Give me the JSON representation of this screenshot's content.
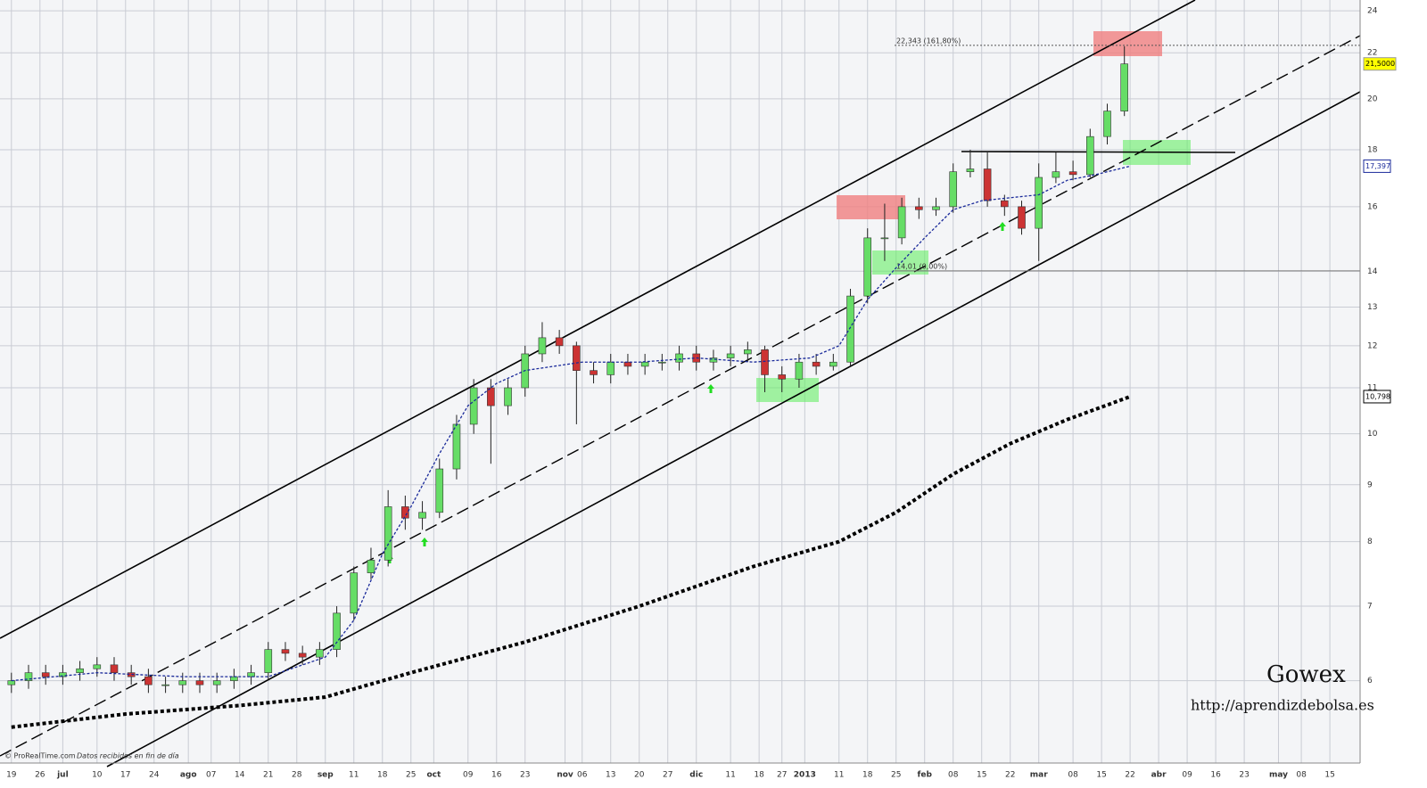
{
  "chart_data": {
    "type": "candlestick",
    "log_scale": true,
    "grid": true,
    "ylim": [
      5.06,
      24.54
    ],
    "yticks": [
      6,
      7,
      8,
      9,
      10,
      11,
      12,
      13,
      14,
      16,
      18,
      20,
      22,
      24
    ],
    "xlim": [
      -2,
      236.3
    ],
    "xticks": [
      {
        "value": 0,
        "label": "19"
      },
      {
        "value": 5,
        "label": "26"
      },
      {
        "value": 9,
        "label": "jul"
      },
      {
        "value": 15,
        "label": "10"
      },
      {
        "value": 20,
        "label": "17"
      },
      {
        "value": 25,
        "label": "24"
      },
      {
        "value": 31,
        "label": "ago"
      },
      {
        "value": 35,
        "label": "07"
      },
      {
        "value": 40,
        "label": "14"
      },
      {
        "value": 45,
        "label": "21"
      },
      {
        "value": 50,
        "label": "28"
      },
      {
        "value": 55,
        "label": "sep"
      },
      {
        "value": 60,
        "label": "11"
      },
      {
        "value": 65,
        "label": "18"
      },
      {
        "value": 70,
        "label": "25"
      },
      {
        "value": 74,
        "label": "oct"
      },
      {
        "value": 80,
        "label": "09"
      },
      {
        "value": 85,
        "label": "16"
      },
      {
        "value": 90,
        "label": "23"
      },
      {
        "value": 97,
        "label": "nov"
      },
      {
        "value": 100,
        "label": "06"
      },
      {
        "value": 105,
        "label": "13"
      },
      {
        "value": 110,
        "label": "20"
      },
      {
        "value": 115,
        "label": "27"
      },
      {
        "value": 120,
        "label": "dic"
      },
      {
        "value": 126,
        "label": "11"
      },
      {
        "value": 131,
        "label": "18"
      },
      {
        "value": 135,
        "label": "27"
      },
      {
        "value": 139,
        "label": "2013"
      },
      {
        "value": 145,
        "label": "11"
      },
      {
        "value": 150,
        "label": "18"
      },
      {
        "value": 155,
        "label": "25"
      },
      {
        "value": 160,
        "label": "feb"
      },
      {
        "value": 165,
        "label": "08"
      },
      {
        "value": 170,
        "label": "15"
      },
      {
        "value": 175,
        "label": "22"
      },
      {
        "value": 180,
        "label": "mar"
      },
      {
        "value": 186,
        "label": "08"
      },
      {
        "value": 191,
        "label": "15"
      },
      {
        "value": 196,
        "label": "22"
      },
      {
        "value": 201,
        "label": "abr"
      },
      {
        "value": 206,
        "label": "09"
      },
      {
        "value": 211,
        "label": "16"
      },
      {
        "value": 216,
        "label": "23"
      },
      {
        "value": 222,
        "label": "may"
      },
      {
        "value": 226,
        "label": "08"
      },
      {
        "value": 231,
        "label": "15"
      }
    ],
    "up_color": "#66dd66",
    "down_color": "#cc3333",
    "x": [
      0,
      3,
      6,
      9,
      12,
      15,
      18,
      21,
      24,
      27,
      30,
      33,
      36,
      39,
      42,
      45,
      48,
      51,
      54,
      57,
      60,
      63,
      66,
      69,
      72,
      75,
      78,
      81,
      84,
      87,
      90,
      93,
      96,
      99,
      102,
      105,
      108,
      111,
      114,
      117,
      120,
      123,
      126,
      129,
      132,
      135,
      138,
      141,
      144,
      147,
      150,
      153,
      156,
      159,
      162,
      165,
      168,
      171,
      174,
      177,
      180,
      183,
      186,
      189,
      192,
      195
    ],
    "open": [
      5.95,
      6.0,
      6.1,
      6.05,
      6.1,
      6.15,
      6.2,
      6.1,
      6.05,
      5.95,
      5.95,
      6.0,
      5.95,
      6.0,
      6.05,
      6.1,
      6.4,
      6.35,
      6.3,
      6.4,
      6.9,
      7.5,
      7.7,
      8.6,
      8.4,
      8.5,
      9.3,
      10.2,
      11.0,
      10.6,
      11.0,
      11.8,
      12.2,
      12.0,
      11.4,
      11.3,
      11.6,
      11.5,
      11.6,
      11.6,
      11.8,
      11.6,
      11.7,
      11.8,
      11.9,
      11.3,
      11.2,
      11.6,
      11.5,
      11.6,
      13.3,
      15.0,
      15.0,
      16.0,
      15.9,
      16.0,
      17.2,
      17.3,
      16.2,
      16.0,
      15.3,
      17.0,
      17.2,
      17.1,
      18.5,
      19.5
    ],
    "high": [
      6.1,
      6.2,
      6.2,
      6.2,
      6.25,
      6.3,
      6.3,
      6.2,
      6.15,
      6.05,
      6.1,
      6.1,
      6.1,
      6.15,
      6.2,
      6.5,
      6.5,
      6.45,
      6.5,
      7.0,
      7.6,
      7.9,
      8.9,
      8.8,
      8.7,
      9.5,
      10.4,
      11.2,
      11.2,
      11.2,
      12.0,
      12.6,
      12.4,
      12.1,
      11.6,
      11.8,
      11.8,
      11.8,
      11.8,
      12.0,
      12.0,
      11.9,
      12.0,
      12.1,
      12.0,
      11.5,
      11.8,
      11.8,
      11.8,
      13.5,
      15.3,
      16.1,
      16.3,
      16.3,
      16.3,
      17.5,
      18.0,
      17.9,
      16.4,
      16.2,
      17.5,
      17.9,
      17.6,
      18.8,
      19.8,
      22.3
    ],
    "low": [
      5.85,
      5.9,
      5.95,
      5.95,
      6.0,
      6.05,
      6.0,
      5.95,
      5.85,
      5.85,
      5.85,
      5.85,
      5.85,
      5.9,
      5.95,
      6.0,
      6.25,
      6.2,
      6.2,
      6.3,
      6.8,
      7.4,
      7.6,
      8.2,
      8.2,
      8.4,
      9.1,
      10.0,
      9.4,
      10.4,
      10.8,
      11.6,
      11.8,
      10.2,
      11.1,
      11.1,
      11.3,
      11.3,
      11.4,
      11.4,
      11.4,
      11.4,
      11.5,
      11.6,
      10.9,
      10.9,
      11.0,
      11.3,
      11.4,
      11.5,
      13.1,
      14.3,
      14.8,
      15.6,
      15.7,
      15.8,
      17.0,
      16.0,
      15.7,
      15.1,
      14.3,
      16.8,
      16.9,
      17.0,
      18.2,
      19.3
    ],
    "close": [
      6.0,
      6.1,
      6.05,
      6.1,
      6.15,
      6.2,
      6.1,
      6.05,
      5.95,
      5.95,
      6.0,
      5.95,
      6.0,
      6.05,
      6.1,
      6.4,
      6.35,
      6.3,
      6.4,
      6.9,
      7.5,
      7.7,
      8.6,
      8.4,
      8.5,
      9.3,
      10.2,
      11.0,
      10.6,
      11.0,
      11.8,
      12.2,
      12.0,
      11.4,
      11.3,
      11.6,
      11.5,
      11.6,
      11.6,
      11.8,
      11.6,
      11.7,
      11.8,
      11.9,
      11.3,
      11.2,
      11.6,
      11.5,
      11.6,
      13.3,
      15.0,
      15.0,
      16.0,
      15.9,
      16.0,
      17.2,
      17.3,
      16.2,
      16.0,
      15.3,
      17.0,
      17.2,
      17.1,
      18.5,
      19.5,
      21.5
    ],
    "last_label": "21,5000",
    "series": [
      {
        "color": "#1a2a9a",
        "dash": "short",
        "x": [
          0,
          15,
          30,
          45,
          55,
          60,
          65,
          70,
          75,
          80,
          85,
          90,
          100,
          110,
          120,
          130,
          140,
          145,
          150,
          155,
          160,
          165,
          170,
          175,
          180,
          185,
          190,
          196
        ],
        "values": [
          6.0,
          6.1,
          6.05,
          6.05,
          6.3,
          6.8,
          7.8,
          8.6,
          9.6,
          10.6,
          11.1,
          11.4,
          11.6,
          11.6,
          11.7,
          11.6,
          11.7,
          12.0,
          13.2,
          14.1,
          15.0,
          15.9,
          16.2,
          16.3,
          16.4,
          16.9,
          17.1,
          17.4
        ],
        "last_label": "17,397"
      },
      {
        "color": "#000000",
        "dash": "thick",
        "x": [
          0,
          20,
          40,
          55,
          70,
          90,
          110,
          130,
          145,
          155,
          165,
          175,
          185,
          196
        ],
        "values": [
          5.45,
          5.6,
          5.7,
          5.8,
          6.1,
          6.5,
          7.0,
          7.6,
          8.0,
          8.5,
          9.2,
          9.8,
          10.3,
          10.8
        ],
        "last_label": "10,798"
      }
    ],
    "levels": [
      {
        "value": 22.343,
        "label": "22,343 (161,80%)",
        "style": "dotted"
      },
      {
        "value": 14.01,
        "label": "14,01 (0,00%)",
        "style": "solid"
      }
    ],
    "watermark": "Gowex",
    "url": "http://aprendizdebolsa.es",
    "credit": "© ProRealTime.com",
    "credit_note": "Datos recibidos en fin de día"
  }
}
